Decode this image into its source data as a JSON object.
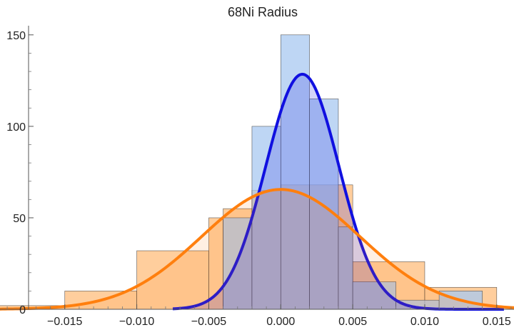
{
  "chart_data": {
    "type": "histogram",
    "title": "68Ni Radius",
    "xlabel": "",
    "ylabel": "",
    "xlim": [
      -0.0195,
      0.0162
    ],
    "ylim": [
      0,
      155
    ],
    "x_ticks": [
      -0.015,
      -0.01,
      -0.005,
      0.0,
      0.005,
      0.01,
      0.015
    ],
    "x_tick_labels": [
      "-0.015",
      "-0.010",
      "-0.005",
      "0.000",
      "0.005",
      "0.010",
      "0.015"
    ],
    "y_ticks": [
      0,
      50,
      100,
      150
    ],
    "y_tick_labels": [
      "0",
      "50",
      "100",
      "150"
    ],
    "grid": false,
    "legend": "none",
    "series": [
      {
        "color": "#a8c8f0",
        "fill_opacity": 0.75,
        "bins": [
          {
            "x0": -0.004,
            "x1": -0.002,
            "count": 50
          },
          {
            "x0": -0.002,
            "x1": 0.0,
            "count": 100
          },
          {
            "x0": 0.0,
            "x1": 0.002,
            "count": 150
          },
          {
            "x0": 0.002,
            "x1": 0.004,
            "count": 115
          },
          {
            "x0": 0.004,
            "x1": 0.005,
            "count": 45
          },
          {
            "x0": 0.005,
            "x1": 0.008,
            "count": 15
          },
          {
            "x0": 0.008,
            "x1": 0.011,
            "count": 5
          },
          {
            "x0": 0.011,
            "x1": 0.014,
            "count": 10
          }
        ],
        "fit": {
          "type": "gaussian",
          "mean": 0.0015,
          "amplitude": 128.5,
          "sigma": 0.00255,
          "x_range": [
            -0.0075,
            0.0155
          ],
          "color": "#1010e0"
        }
      },
      {
        "color": "#ffa64d",
        "fill_opacity": 0.55,
        "bins": [
          {
            "x0": -0.02,
            "x1": -0.015,
            "count": 2
          },
          {
            "x0": -0.015,
            "x1": -0.01,
            "count": 10
          },
          {
            "x0": -0.01,
            "x1": -0.005,
            "count": 32
          },
          {
            "x0": -0.005,
            "x1": -0.004,
            "count": 50
          },
          {
            "x0": -0.004,
            "x1": -0.002,
            "count": 55
          },
          {
            "x0": -0.002,
            "x1": 0.0,
            "count": 65
          },
          {
            "x0": 0.0,
            "x1": 0.002,
            "count": 68
          },
          {
            "x0": 0.002,
            "x1": 0.005,
            "count": 68
          },
          {
            "x0": 0.005,
            "x1": 0.01,
            "count": 26
          },
          {
            "x0": 0.01,
            "x1": 0.015,
            "count": 12
          }
        ],
        "fit": {
          "type": "gaussian",
          "mean": 0.0,
          "amplitude": 65.5,
          "sigma": 0.0055,
          "x_range": [
            -0.0195,
            0.0162
          ],
          "color": "#ff7f0e"
        }
      }
    ]
  }
}
